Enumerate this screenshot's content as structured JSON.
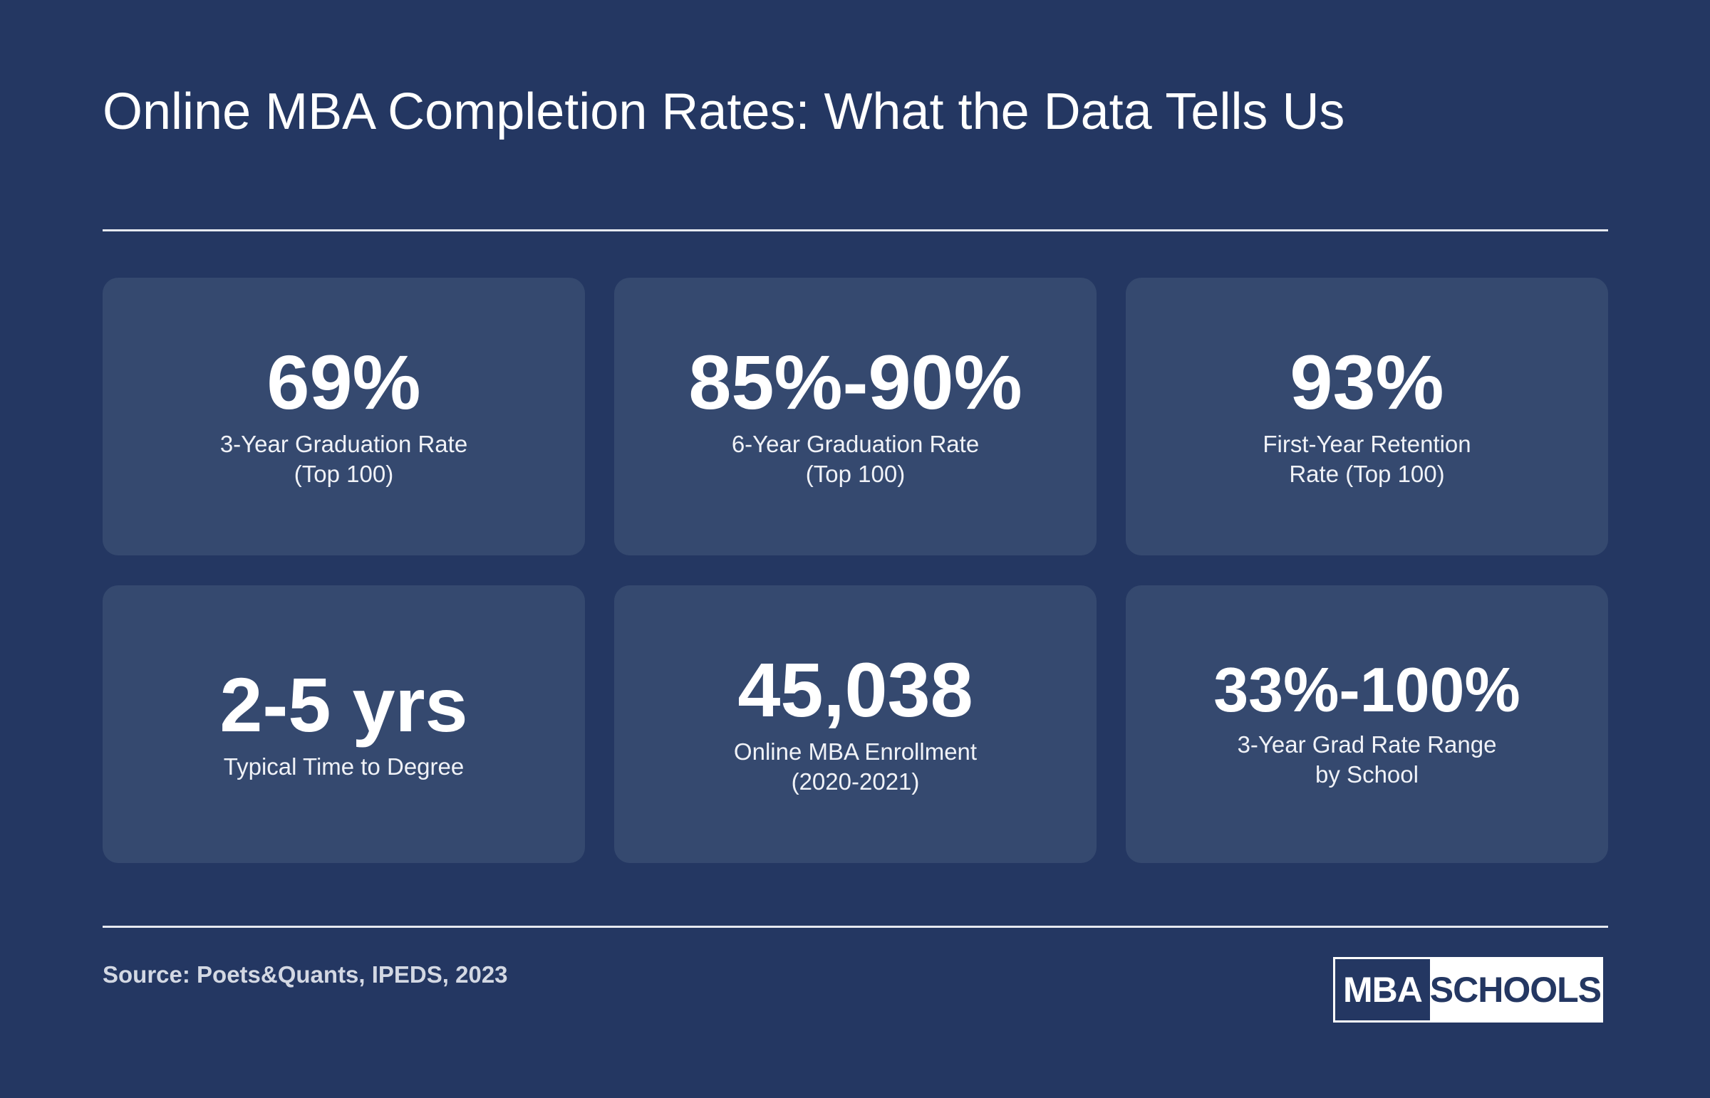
{
  "header": {
    "title": "Online MBA Completion Rates: What the Data Tells Us"
  },
  "cards": [
    {
      "stat": "69%",
      "label": "3-Year Graduation Rate\n(Top 100)"
    },
    {
      "stat": "85%-90%",
      "label": "6-Year Graduation Rate\n(Top 100)"
    },
    {
      "stat": "93%",
      "label": "First-Year Retention\nRate (Top 100)"
    },
    {
      "stat": "2-5 yrs",
      "label": "Typical Time to Degree"
    },
    {
      "stat": "45,038",
      "label": "Online MBA Enrollment\n(2020-2021)"
    },
    {
      "stat": "33%-100%",
      "label": "3-Year Grad Rate Range\nby School"
    }
  ],
  "footer": {
    "source": "Source: Poets&Quants, IPEDS, 2023",
    "logo_left": "MBA",
    "logo_right": "SCHOOLS"
  },
  "colors": {
    "background": "#243762",
    "card": "#35496f",
    "text": "#ffffff"
  }
}
